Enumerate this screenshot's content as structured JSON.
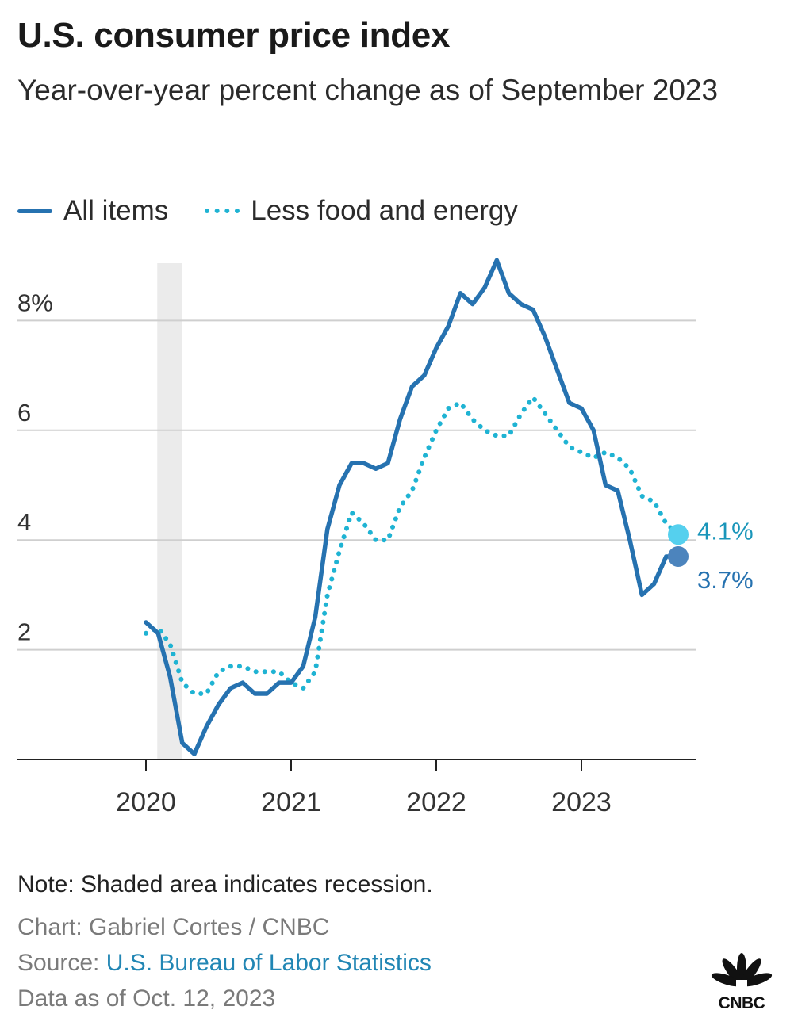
{
  "header": {
    "title": "U.S. consumer price index",
    "subtitle": "Year-over-year percent change as of September 2023"
  },
  "legend": {
    "items": [
      {
        "label": "All items",
        "style": "solid",
        "color": "#2672b0"
      },
      {
        "label": "Less food and energy",
        "style": "dotted",
        "color": "#1fb3d3"
      }
    ]
  },
  "chart_data": {
    "type": "line",
    "title": "U.S. consumer price index",
    "subtitle": "Year-over-year percent change as of September 2023",
    "xlabel": "",
    "ylabel": "",
    "x_ticks": [
      "2020",
      "2021",
      "2022",
      "2023"
    ],
    "y_ticks": [
      "2",
      "4",
      "6",
      "8%"
    ],
    "ylim": [
      0,
      9
    ],
    "grid": true,
    "legend_position": "top",
    "recession_shading": {
      "start": "2020-02",
      "end": "2020-04",
      "color": "#ebebeb"
    },
    "x_dates": [
      "2020-01",
      "2020-02",
      "2020-03",
      "2020-04",
      "2020-05",
      "2020-06",
      "2020-07",
      "2020-08",
      "2020-09",
      "2020-10",
      "2020-11",
      "2020-12",
      "2021-01",
      "2021-02",
      "2021-03",
      "2021-04",
      "2021-05",
      "2021-06",
      "2021-07",
      "2021-08",
      "2021-09",
      "2021-10",
      "2021-11",
      "2021-12",
      "2022-01",
      "2022-02",
      "2022-03",
      "2022-04",
      "2022-05",
      "2022-06",
      "2022-07",
      "2022-08",
      "2022-09",
      "2022-10",
      "2022-11",
      "2022-12",
      "2023-01",
      "2023-02",
      "2023-03",
      "2023-04",
      "2023-05",
      "2023-06",
      "2023-07",
      "2023-08",
      "2023-09"
    ],
    "series": [
      {
        "name": "All items",
        "style": "solid",
        "color": "#2672b0",
        "values": [
          2.5,
          2.3,
          1.5,
          0.3,
          0.1,
          0.6,
          1.0,
          1.3,
          1.4,
          1.2,
          1.2,
          1.4,
          1.4,
          1.7,
          2.6,
          4.2,
          5.0,
          5.4,
          5.4,
          5.3,
          5.4,
          6.2,
          6.8,
          7.0,
          7.5,
          7.9,
          8.5,
          8.3,
          8.6,
          9.1,
          8.5,
          8.3,
          8.2,
          7.7,
          7.1,
          6.5,
          6.4,
          6.0,
          5.0,
          4.9,
          4.0,
          3.0,
          3.2,
          3.7,
          3.7
        ],
        "end_label": "3.7%"
      },
      {
        "name": "Less food and energy",
        "style": "dotted",
        "color": "#1fb3d3",
        "values": [
          2.3,
          2.4,
          2.1,
          1.4,
          1.2,
          1.2,
          1.6,
          1.7,
          1.7,
          1.6,
          1.6,
          1.6,
          1.4,
          1.3,
          1.6,
          3.0,
          3.8,
          4.5,
          4.3,
          4.0,
          4.0,
          4.6,
          4.9,
          5.5,
          6.0,
          6.4,
          6.5,
          6.2,
          6.0,
          5.9,
          5.9,
          6.3,
          6.6,
          6.3,
          6.0,
          5.7,
          5.6,
          5.5,
          5.6,
          5.5,
          5.3,
          4.8,
          4.7,
          4.3,
          4.1
        ],
        "end_label": "4.1%"
      }
    ]
  },
  "footer": {
    "note": "Note: Shaded area indicates recession.",
    "credit": "Chart: Gabriel Cortes / CNBC",
    "source_prefix": "Source: ",
    "source_link": "U.S. Bureau of Labor Statistics",
    "data_as_of": "Data as of Oct. 12, 2023"
  },
  "logo": {
    "text": "CNBC",
    "icon": "cnbc-peacock-logo"
  }
}
